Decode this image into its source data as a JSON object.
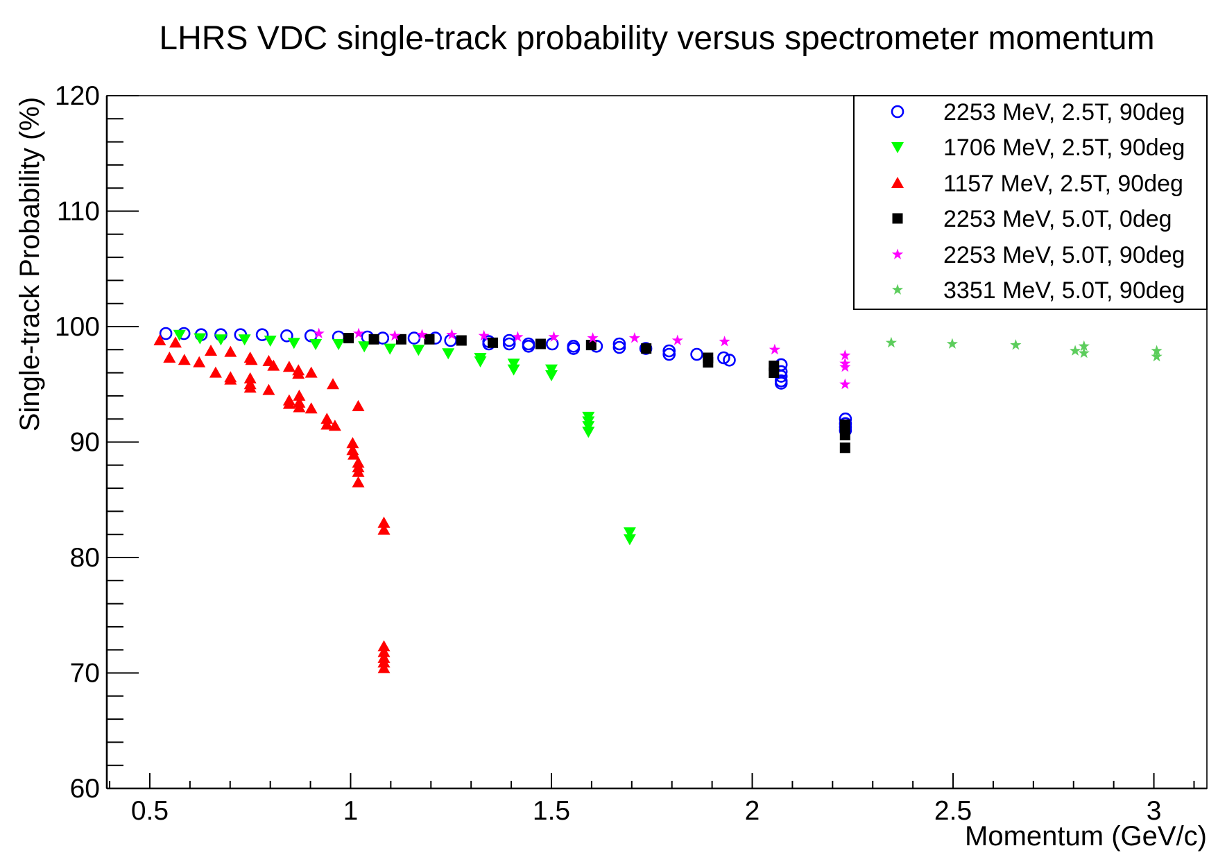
{
  "chart_data": {
    "type": "scatter",
    "title": "LHRS VDC single-track probability versus spectrometer momentum",
    "xlabel": "Momentum (GeV/c)",
    "ylabel": "Single-track Probability (%)",
    "xlim": [
      0.393,
      3.132
    ],
    "ylim": [
      60,
      120
    ],
    "x_ticks": [
      0.5,
      1,
      1.5,
      2,
      2.5,
      3
    ],
    "x_tick_labels": [
      "0.5",
      "1",
      "1.5",
      "2",
      "2.5",
      "3"
    ],
    "y_ticks": [
      60,
      70,
      80,
      90,
      100,
      110,
      120
    ],
    "y_tick_labels": [
      "60",
      "70",
      "80",
      "90",
      "100",
      "110",
      "120"
    ],
    "grid": false,
    "legend_position": "top-right",
    "series": [
      {
        "name": "2253 MeV, 2.5T, 90deg",
        "marker": "open-circle",
        "color": "#0000ff",
        "x": [
          0.54,
          0.585,
          0.628,
          0.677,
          0.726,
          0.78,
          0.841,
          0.901,
          0.97,
          1.042,
          1.08,
          1.158,
          1.211,
          1.249,
          1.344,
          1.344,
          1.395,
          1.395,
          1.443,
          1.443,
          1.502,
          1.555,
          1.555,
          1.612,
          1.669,
          1.669,
          1.735,
          1.793,
          1.793,
          1.862,
          1.929,
          1.943,
          2.072,
          2.072,
          2.072,
          2.072,
          2.072,
          2.232,
          2.232,
          2.232,
          2.232
        ],
        "y": [
          99.4,
          99.4,
          99.3,
          99.3,
          99.3,
          99.3,
          99.2,
          99.2,
          99.1,
          99.1,
          99.0,
          99.0,
          99.0,
          98.8,
          98.7,
          98.5,
          98.8,
          98.5,
          98.5,
          98.3,
          98.5,
          98.3,
          98.1,
          98.3,
          98.5,
          98.2,
          98.1,
          97.9,
          97.6,
          97.6,
          97.3,
          97.1,
          96.7,
          96.1,
          95.7,
          95.3,
          95.1,
          92.0,
          91.6,
          91.3,
          91.0
        ]
      },
      {
        "name": "1706 MeV, 2.5T, 90deg",
        "marker": "down-triangle",
        "color": "#00ff00",
        "x": [
          0.574,
          0.625,
          0.677,
          0.736,
          0.8,
          0.859,
          0.913,
          0.97,
          1.034,
          1.098,
          1.169,
          1.243,
          1.323,
          1.323,
          1.406,
          1.406,
          1.5,
          1.5,
          1.592,
          1.592,
          1.592,
          1.592,
          1.695,
          1.695
        ],
        "y": [
          99.3,
          99.0,
          98.9,
          98.9,
          98.8,
          98.6,
          98.5,
          98.5,
          98.3,
          98.1,
          98.0,
          97.7,
          97.3,
          97.0,
          96.8,
          96.3,
          96.3,
          95.8,
          92.2,
          91.8,
          91.4,
          90.9,
          82.2,
          81.6
        ]
      },
      {
        "name": "1157 MeV, 2.5T, 90deg",
        "marker": "up-triangle",
        "color": "#ff0000",
        "x": [
          0.525,
          0.564,
          0.549,
          0.586,
          0.623,
          0.652,
          0.664,
          0.701,
          0.701,
          0.701,
          0.75,
          0.753,
          0.75,
          0.75,
          0.75,
          0.796,
          0.808,
          0.796,
          0.847,
          0.87,
          0.87,
          0.847,
          0.847,
          0.872,
          0.872,
          0.872,
          0.902,
          0.902,
          0.956,
          0.941,
          0.941,
          0.961,
          1.019,
          1.005,
          1.005,
          1.008,
          1.019,
          1.019,
          1.019,
          1.019,
          1.083,
          1.083,
          1.083,
          1.083,
          1.083,
          1.083,
          1.083
        ],
        "y": [
          98.8,
          98.6,
          97.3,
          97.1,
          96.9,
          97.9,
          96.0,
          97.8,
          95.6,
          95.4,
          97.3,
          97.1,
          95.5,
          95.0,
          94.7,
          97.0,
          96.6,
          94.5,
          96.5,
          96.2,
          95.9,
          93.6,
          93.3,
          94.0,
          93.4,
          93.0,
          96.0,
          92.9,
          95.0,
          92.0,
          91.5,
          91.4,
          93.1,
          89.9,
          89.3,
          88.9,
          88.2,
          87.8,
          87.4,
          86.5,
          83.0,
          82.4,
          72.3,
          71.8,
          71.3,
          70.9,
          70.4
        ]
      },
      {
        "name": "2253 MeV, 5.0T, 0deg",
        "marker": "square",
        "color": "#000000",
        "x": [
          0.995,
          1.058,
          1.126,
          1.196,
          1.276,
          1.354,
          1.473,
          1.599,
          1.736,
          1.89,
          1.89,
          2.054,
          2.054,
          2.231,
          2.231,
          2.231
        ],
        "y": [
          99.0,
          98.9,
          98.9,
          98.9,
          98.8,
          98.6,
          98.5,
          98.4,
          98.1,
          97.3,
          96.9,
          96.6,
          96.0,
          91.5,
          90.6,
          89.5
        ]
      },
      {
        "name": "2253 MeV, 5.0T, 90deg",
        "marker": "star",
        "color": "#ff00ff",
        "x": [
          0.921,
          1.02,
          1.11,
          1.178,
          1.252,
          1.332,
          1.416,
          1.506,
          1.603,
          1.707,
          1.814,
          1.931,
          2.056,
          2.231,
          2.231,
          2.231,
          2.231
        ],
        "y": [
          99.4,
          99.4,
          99.2,
          99.3,
          99.3,
          99.2,
          99.1,
          99.1,
          99.0,
          99.0,
          98.8,
          98.7,
          98.0,
          97.5,
          96.8,
          96.5,
          95.0
        ]
      },
      {
        "name": "3351 MeV, 5.0T, 90deg",
        "marker": "star",
        "color": "#5ccd5c",
        "x": [
          2.346,
          2.498,
          2.656,
          2.804,
          2.826,
          2.826,
          3.007,
          3.007
        ],
        "y": [
          98.6,
          98.5,
          98.4,
          97.9,
          98.3,
          97.7,
          97.9,
          97.4
        ]
      }
    ]
  }
}
